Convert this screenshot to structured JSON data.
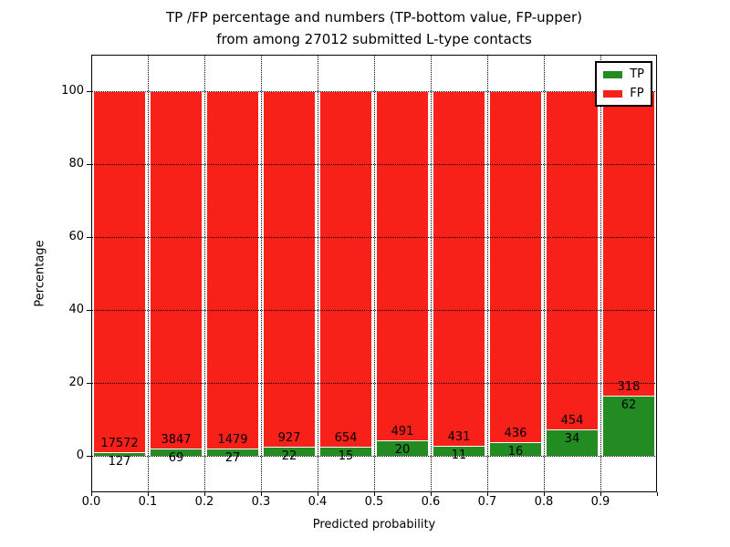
{
  "figure": {
    "title_line1": "TP /FP percentage and numbers (TP-bottom value, FP-upper)",
    "title_line2": "from among 27012 submitted L-type contacts"
  },
  "chart_data": {
    "type": "bar",
    "stacked": true,
    "normalized_to_percent": true,
    "title": "TP /FP percentage and numbers (TP-bottom value, FP-upper)\nfrom among 27012 submitted L-type contacts",
    "xlabel": "Predicted probability",
    "ylabel": "Percentage",
    "total_submitted": 27012,
    "xlim": [
      0.0,
      1.0
    ],
    "ylim": [
      -10,
      110
    ],
    "bin_width": 0.1,
    "bins": [
      0.0,
      0.1,
      0.2,
      0.3,
      0.4,
      0.5,
      0.6,
      0.7,
      0.8,
      0.9
    ],
    "xticks": [
      "0.0",
      "0.1",
      "0.2",
      "0.3",
      "0.4",
      "0.5",
      "0.6",
      "0.7",
      "0.8",
      "0.9"
    ],
    "yticks": [
      "0",
      "20",
      "40",
      "60",
      "80",
      "100"
    ],
    "series": [
      {
        "name": "TP",
        "color": "#228b22",
        "counts": [
          127,
          69,
          27,
          22,
          15,
          20,
          11,
          16,
          34,
          62
        ]
      },
      {
        "name": "FP",
        "color": "#f8211a",
        "counts": [
          17572,
          3847,
          1479,
          927,
          654,
          491,
          431,
          436,
          454,
          318
        ]
      }
    ],
    "bar_edge_color": "#ffffff",
    "grid": {
      "style": "dotted",
      "color": "#000000",
      "above_bars": true
    },
    "legend": {
      "position": "upper right",
      "entries": [
        "TP",
        "FP"
      ]
    }
  }
}
